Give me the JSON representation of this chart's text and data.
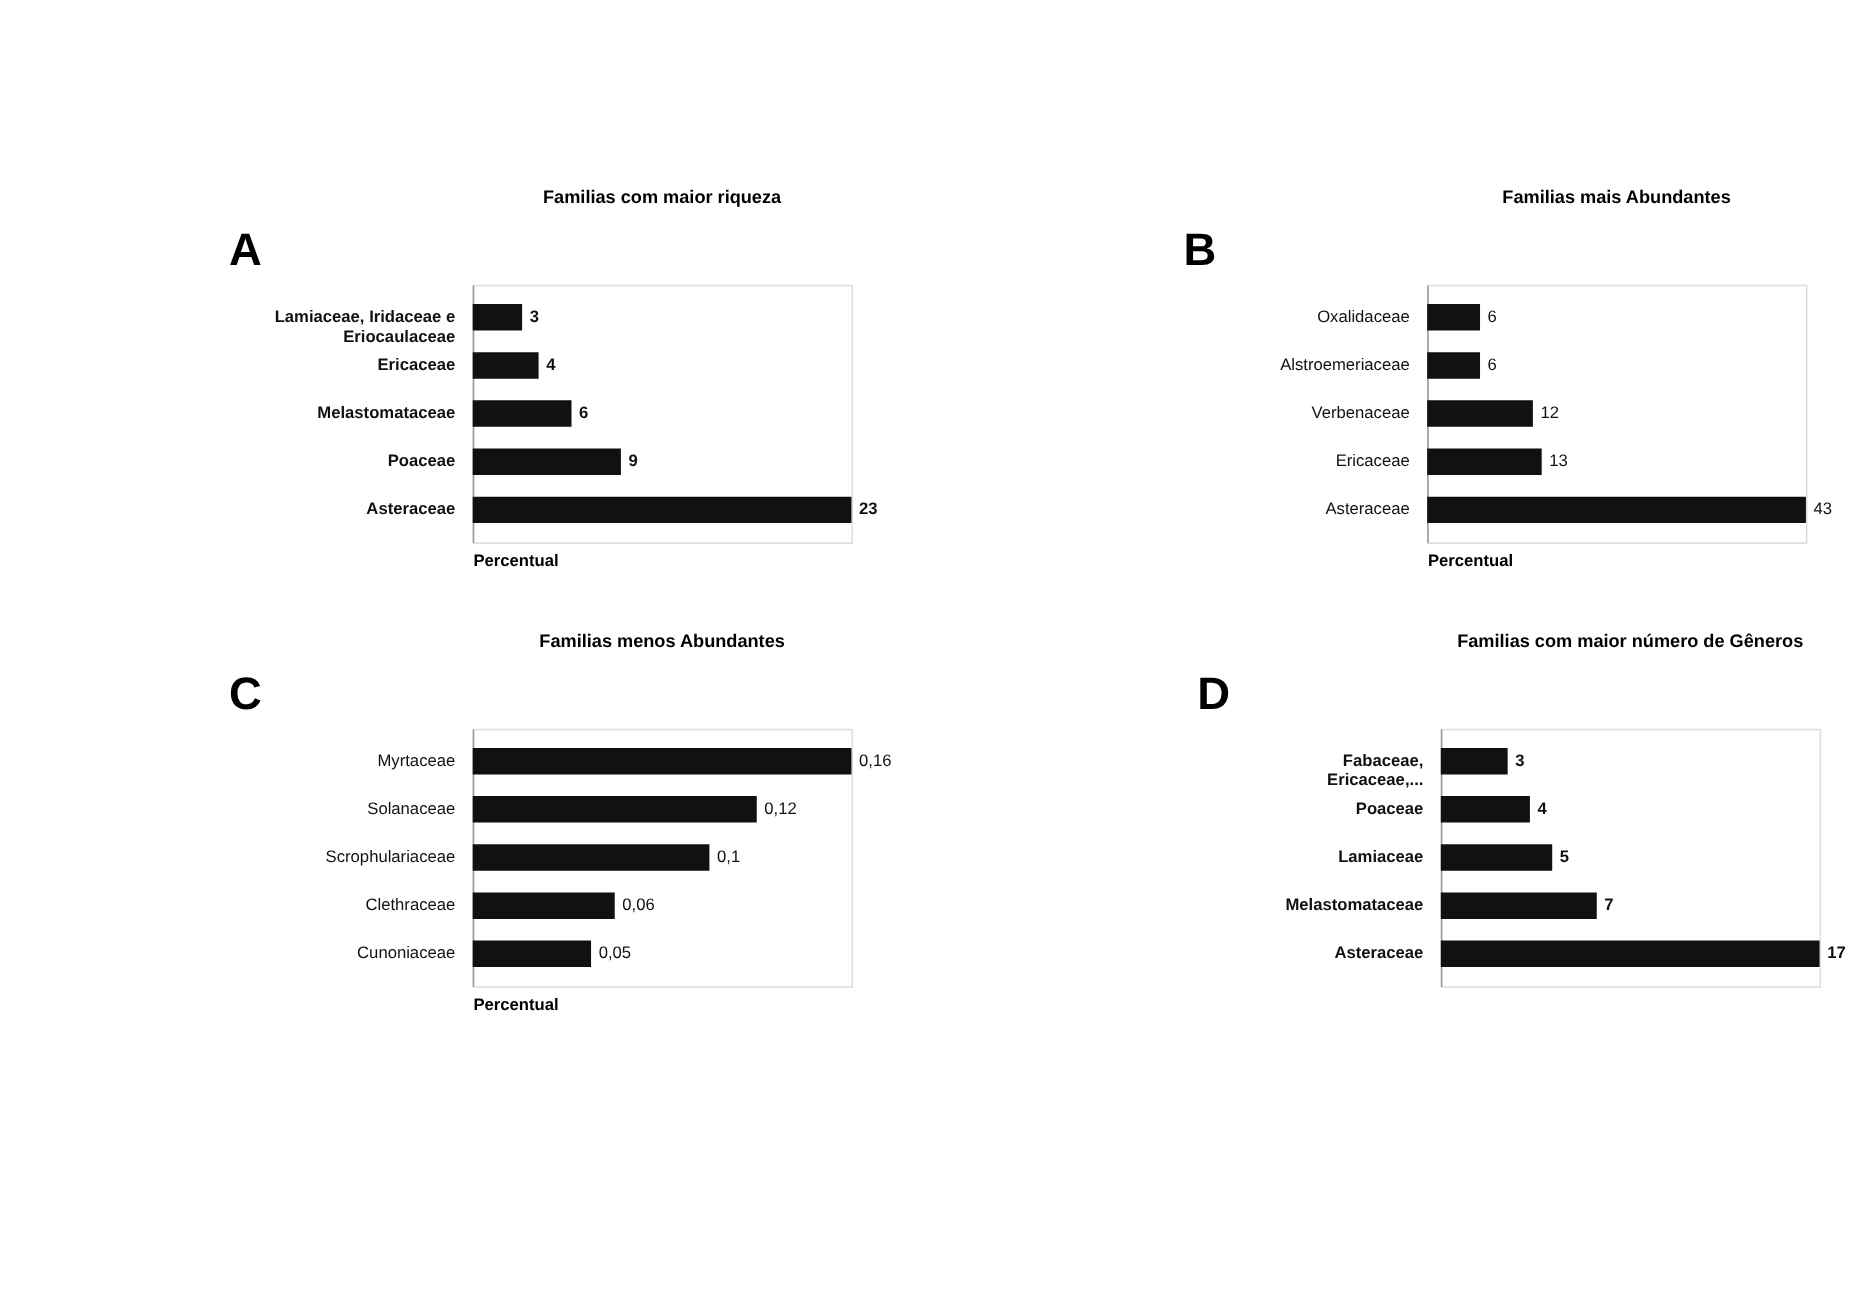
{
  "chart_data": [
    {
      "type": "bar",
      "orientation": "horizontal",
      "title": "Familias com maior riqueza",
      "xlabel": "Percentual",
      "annotations": [
        "A"
      ],
      "categories": [
        "Lamiaceae, Iridaceae e Eriocaulaceae",
        "Ericaceae",
        "Melastomataceae",
        "Poaceae",
        "Asteraceae"
      ],
      "values": [
        3,
        4,
        6,
        9,
        23
      ],
      "color": "#111111",
      "data_labels": true
    },
    {
      "type": "bar",
      "orientation": "horizontal",
      "title": "Familias mais Abundantes",
      "xlabel": "Percentual",
      "annotations": [
        "B"
      ],
      "categories": [
        "Oxalidaceae",
        "Alstroemeriaceae",
        "Verbenaceae",
        "Ericaceae",
        "Asteraceae"
      ],
      "values": [
        6,
        6,
        12,
        13,
        43
      ],
      "color": "#111111",
      "data_labels": true
    },
    {
      "type": "bar",
      "orientation": "horizontal",
      "title": "Familias menos Abundantes",
      "xlabel": "Percentual",
      "annotations": [
        "C"
      ],
      "categories": [
        "Myrtaceae",
        "Solanaceae",
        "Scrophulariaceae",
        "Clethraceae",
        "Cunoniaceae"
      ],
      "values": [
        0.16,
        0.12,
        0.1,
        0.06,
        0.05
      ],
      "value_labels": [
        "0,16",
        "0,12",
        "0,1",
        "0,06",
        "0,05"
      ],
      "color": "#111111"
    },
    {
      "type": "bar",
      "orientation": "horizontal",
      "title": "Familias com maior número de Gêneros",
      "xlabel": null,
      "annotations": [
        "D"
      ],
      "categories": [
        "Fabaceae, Ericaceae,...",
        "Poaceae",
        "Lamiaceae",
        "Melastomataceae",
        "Asteraceae"
      ],
      "values": [
        3,
        4,
        5,
        7,
        17
      ],
      "color": "#111111",
      "data_labels": true
    }
  ]
}
